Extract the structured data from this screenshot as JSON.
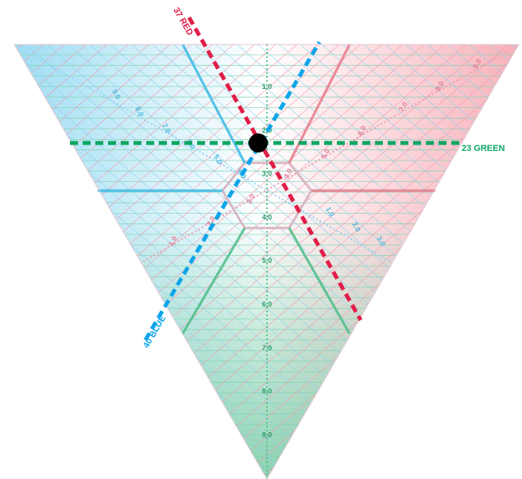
{
  "colors": {
    "red": "#e11d48",
    "blue": "#0ea5e9",
    "green": "#0ca763",
    "red_grid": "#f29bb0",
    "blue_grid": "#8fd3f2",
    "green_grid": "#7fd3b0",
    "red_zone": "#e8808f",
    "blue_zone": "#45bde6",
    "green_zone": "#55bf8c",
    "dot": "#000000"
  },
  "axes": {
    "green": {
      "ticks": [
        "1.0",
        "2.0",
        "3.0",
        "4.0",
        "5.0",
        "6.0",
        "7.0",
        "8.0",
        "9.0"
      ]
    },
    "red": {
      "ticks": [
        "1.0",
        "2.0",
        "3.0",
        "4.0",
        "5.0",
        "6.0",
        "7.0",
        "8.0",
        "9.0"
      ]
    },
    "blue": {
      "ticks": [
        "1.0",
        "2.0",
        "3.0",
        "4.0",
        "5.0",
        "6.0",
        "7.0",
        "8.0",
        "9.0"
      ]
    }
  },
  "readings": {
    "red": {
      "value": 37,
      "label": "37 RED"
    },
    "green": {
      "value": 23,
      "label": "23 GREEN"
    },
    "blue": {
      "value": 40,
      "label": "40 BLUE"
    }
  },
  "marker": {
    "icon": "point-marker"
  }
}
